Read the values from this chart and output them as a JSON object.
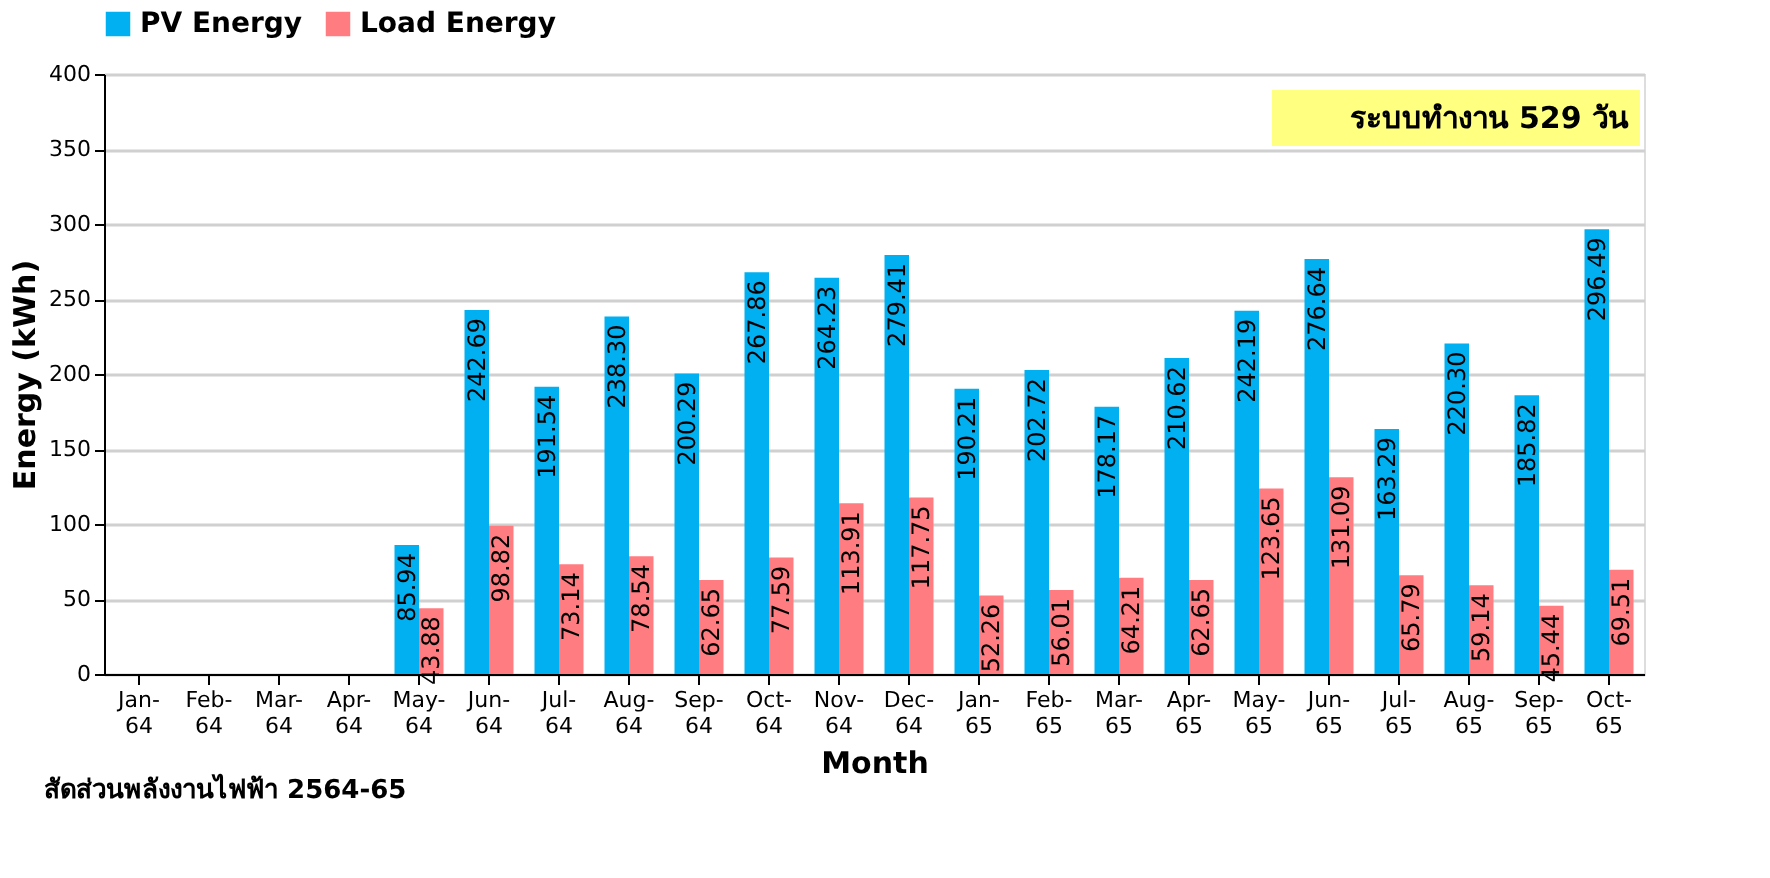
{
  "chart_data": {
    "type": "bar",
    "xlabel": "Month",
    "ylabel": "Energy (kWh)",
    "categories": [
      "Jan-64",
      "Feb-64",
      "Mar-64",
      "Apr-64",
      "May-64",
      "Jun-64",
      "Jul-64",
      "Aug-64",
      "Sep-64",
      "Oct-64",
      "Nov-64",
      "Dec-64",
      "Jan-65",
      "Feb-65",
      "Mar-65",
      "Apr-65",
      "May-65",
      "Jun-65",
      "Jul-65",
      "Aug-65",
      "Sep-65",
      "Oct-65"
    ],
    "series": [
      {
        "name": "PV Energy",
        "color": "#00b0f0",
        "values": [
          null,
          null,
          null,
          null,
          85.94,
          242.69,
          191.54,
          238.3,
          200.29,
          267.86,
          264.23,
          279.41,
          190.21,
          202.72,
          178.17,
          210.62,
          242.19,
          276.64,
          163.29,
          220.3,
          185.82,
          296.49
        ],
        "value_labels": [
          null,
          null,
          null,
          null,
          "85.94",
          "242.69",
          "191.54",
          "238.30",
          "200.29",
          "267.86",
          "264.23",
          "279.41",
          "190.21",
          "202.72",
          "178.17",
          "210.62",
          "242.19",
          "276.64",
          "163.29",
          "220.30",
          "185.82",
          "296.49"
        ]
      },
      {
        "name": "Load Energy",
        "color": "#ff7c80",
        "values": [
          null,
          null,
          null,
          null,
          43.88,
          98.82,
          73.14,
          78.54,
          62.65,
          77.59,
          113.91,
          117.75,
          52.26,
          56.01,
          64.21,
          62.65,
          123.65,
          131.09,
          65.79,
          59.14,
          45.44,
          69.51
        ],
        "value_labels": [
          null,
          null,
          null,
          null,
          "43.88",
          "98.82",
          "73.14",
          "78.54",
          "62.65",
          "77.59",
          "113.91",
          "117.75",
          "52.26",
          "56.01",
          "64.21",
          "62.65",
          "123.65",
          "131.09",
          "65.79",
          "59.14",
          "45.44",
          "69.51"
        ]
      }
    ],
    "ylim": [
      0,
      400
    ],
    "yticks": [
      0,
      50,
      100,
      150,
      200,
      250,
      300,
      350,
      400
    ],
    "grid": "y",
    "legend": "top",
    "annotations": [
      "ระบบทำงาน 529 วัน",
      "สัดส่วนพลังงานไฟฟ้า 2564-65"
    ]
  }
}
